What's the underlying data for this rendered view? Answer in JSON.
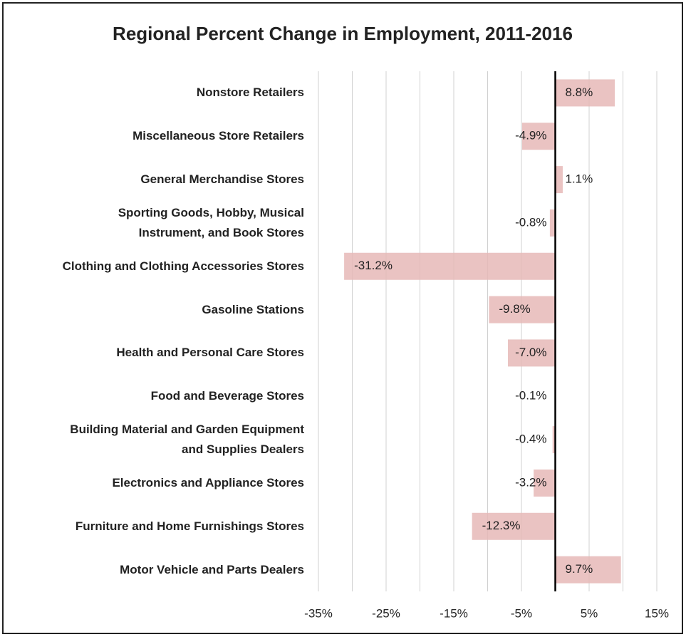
{
  "chart_data": {
    "type": "barh",
    "title": "Regional Percent Change in Employment, 2011-2016",
    "categories": [
      "Nonstore Retailers",
      "Miscellaneous Store Retailers",
      "General Merchandise Stores",
      "Sporting Goods, Hobby, Musical\nInstrument, and Book Stores",
      "Clothing and Clothing Accessories Stores",
      "Gasoline Stations",
      "Health and Personal Care Stores",
      "Food and Beverage Stores",
      "Building Material and Garden Equipment\nand Supplies Dealers",
      "Electronics and Appliance Stores",
      "Furniture and Home Furnishings Stores",
      "Motor Vehicle and Parts Dealers"
    ],
    "values": [
      8.8,
      -4.9,
      1.1,
      -0.8,
      -31.2,
      -9.8,
      -7.0,
      -0.1,
      -0.4,
      -3.2,
      -12.3,
      9.7
    ],
    "value_labels": [
      "8.8%",
      "-4.9%",
      "1.1%",
      "-0.8%",
      "-31.2%",
      "-9.8%",
      "-7.0%",
      "-0.1%",
      "-0.4%",
      "-3.2%",
      "-12.3%",
      "9.7%"
    ],
    "color": "#e6b8b7",
    "xlim": [
      -35,
      15
    ],
    "xticks": [
      {
        "value": -35,
        "label": "-35%"
      },
      {
        "value": -25,
        "label": "-25%"
      },
      {
        "value": -15,
        "label": "-15%"
      },
      {
        "value": -5,
        "label": "-5%"
      },
      {
        "value": 5,
        "label": "5%"
      },
      {
        "value": 15,
        "label": "15%"
      }
    ],
    "xgrid": [
      -35,
      -30,
      -25,
      -20,
      -15,
      -10,
      -5,
      0,
      5,
      10,
      15
    ],
    "grid": true
  }
}
